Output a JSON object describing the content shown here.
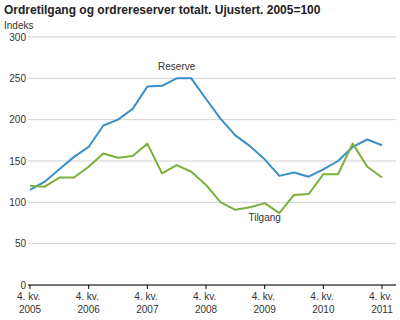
{
  "chart_data": {
    "type": "line",
    "title": "Ordretilgang og ordrereserver totalt. Ujustert. 2005=100",
    "y_label": "Indeks",
    "categories": [
      "4. kv. 2005",
      null,
      null,
      null,
      "4. kv. 2006",
      null,
      null,
      null,
      "4. kv. 2007",
      null,
      null,
      null,
      "4. kv. 2008",
      null,
      null,
      null,
      "4. kv. 2009",
      null,
      null,
      null,
      "4. kv. 2010",
      null,
      null,
      null,
      "4. kv. 2011"
    ],
    "series": [
      {
        "name": "Reserve",
        "color": "#3a8fc6",
        "values": [
          115,
          125,
          140,
          155,
          167,
          193,
          200,
          213,
          240,
          241,
          250,
          250,
          225,
          201,
          181,
          168,
          152,
          132,
          136,
          131,
          140,
          150,
          167,
          176,
          169
        ]
      },
      {
        "name": "Tilgang",
        "color": "#7ab03a",
        "values": [
          120,
          119,
          130,
          130,
          143,
          159,
          154,
          156,
          171,
          135,
          145,
          137,
          121,
          100,
          91,
          94,
          99,
          87,
          109,
          110,
          134,
          134,
          171,
          143,
          130
        ]
      }
    ],
    "ylim": [
      0,
      300
    ],
    "yticks": [
      0,
      50,
      100,
      150,
      200,
      250,
      300
    ],
    "grid": true
  }
}
